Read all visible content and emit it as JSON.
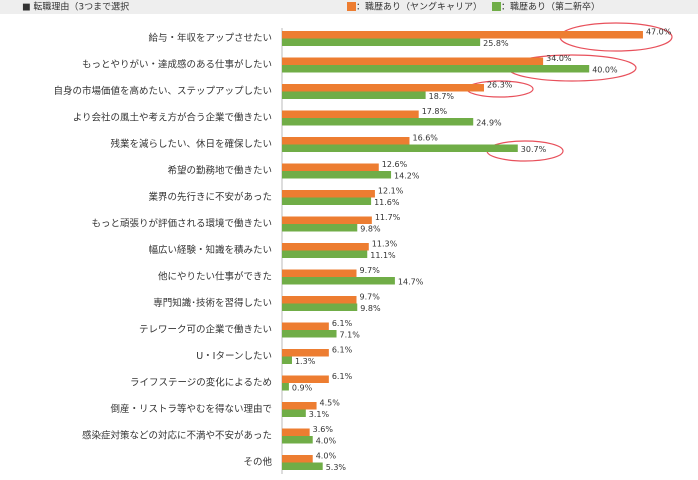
{
  "chart_data": {
    "type": "bar",
    "orientation": "horizontal",
    "title": "■ 転職理由（3つまで選択",
    "categories": [
      "給与・年収をアップさせたい",
      "もっとやりがい・達成感のある仕事がしたい",
      "自身の市場価値を高めたい、ステップアップしたい",
      "より会社の風土や考え方が合う企業で働きたい",
      "残業を減らしたい、休日を確保したい",
      "希望の勤務地で働きたい",
      "業界の先行きに不安があった",
      "もっと頑張りが評価される環境で働きたい",
      "幅広い経験・知識を積みたい",
      "他にやりたい仕事ができた",
      "専門知識･技術を習得したい",
      "テレワーク可の企業で働きたい",
      "U・Iターンしたい",
      "ライフステージの変化によるため",
      "倒産・リストラ等やむを得ない理由で",
      "感染症対策などの対応に不満や不安があった",
      "その他"
    ],
    "series": [
      {
        "name": "：職歴あり（ヤングキャリア）",
        "color": "#ed7d31",
        "values": [
          47.0,
          34.0,
          26.3,
          17.8,
          16.6,
          12.6,
          12.1,
          11.7,
          11.3,
          9.7,
          9.7,
          6.1,
          6.1,
          6.1,
          4.5,
          3.6,
          4.0
        ],
        "value_labels": [
          "47.0%",
          "34.0%",
          "26.3%",
          "17.8%",
          "16.6%",
          "12.6%",
          "12.1%",
          "11.7%",
          "11.3%",
          "9.7%",
          "9.7%",
          "6.1%",
          "6.1%",
          "6.1%",
          "4.5%",
          "3.6%",
          "4.0%"
        ]
      },
      {
        "name": "：職歴あり（第二新卒）",
        "color": "#70ad47",
        "values": [
          25.8,
          40.0,
          18.7,
          24.9,
          30.7,
          14.2,
          11.6,
          9.8,
          11.1,
          14.7,
          9.8,
          7.1,
          1.3,
          0.9,
          3.1,
          4.0,
          5.3
        ],
        "value_labels": [
          "25.8%",
          "40.0%",
          "18.7%",
          "24.9%",
          "30.7%",
          "14.2%",
          "11.6%",
          "9.8%",
          "11.1%",
          "14.7%",
          "9.8%",
          "7.1%",
          "1.3%",
          "0.9%",
          "3.1%",
          "4.0%",
          "5.3%"
        ]
      }
    ]
  }
}
